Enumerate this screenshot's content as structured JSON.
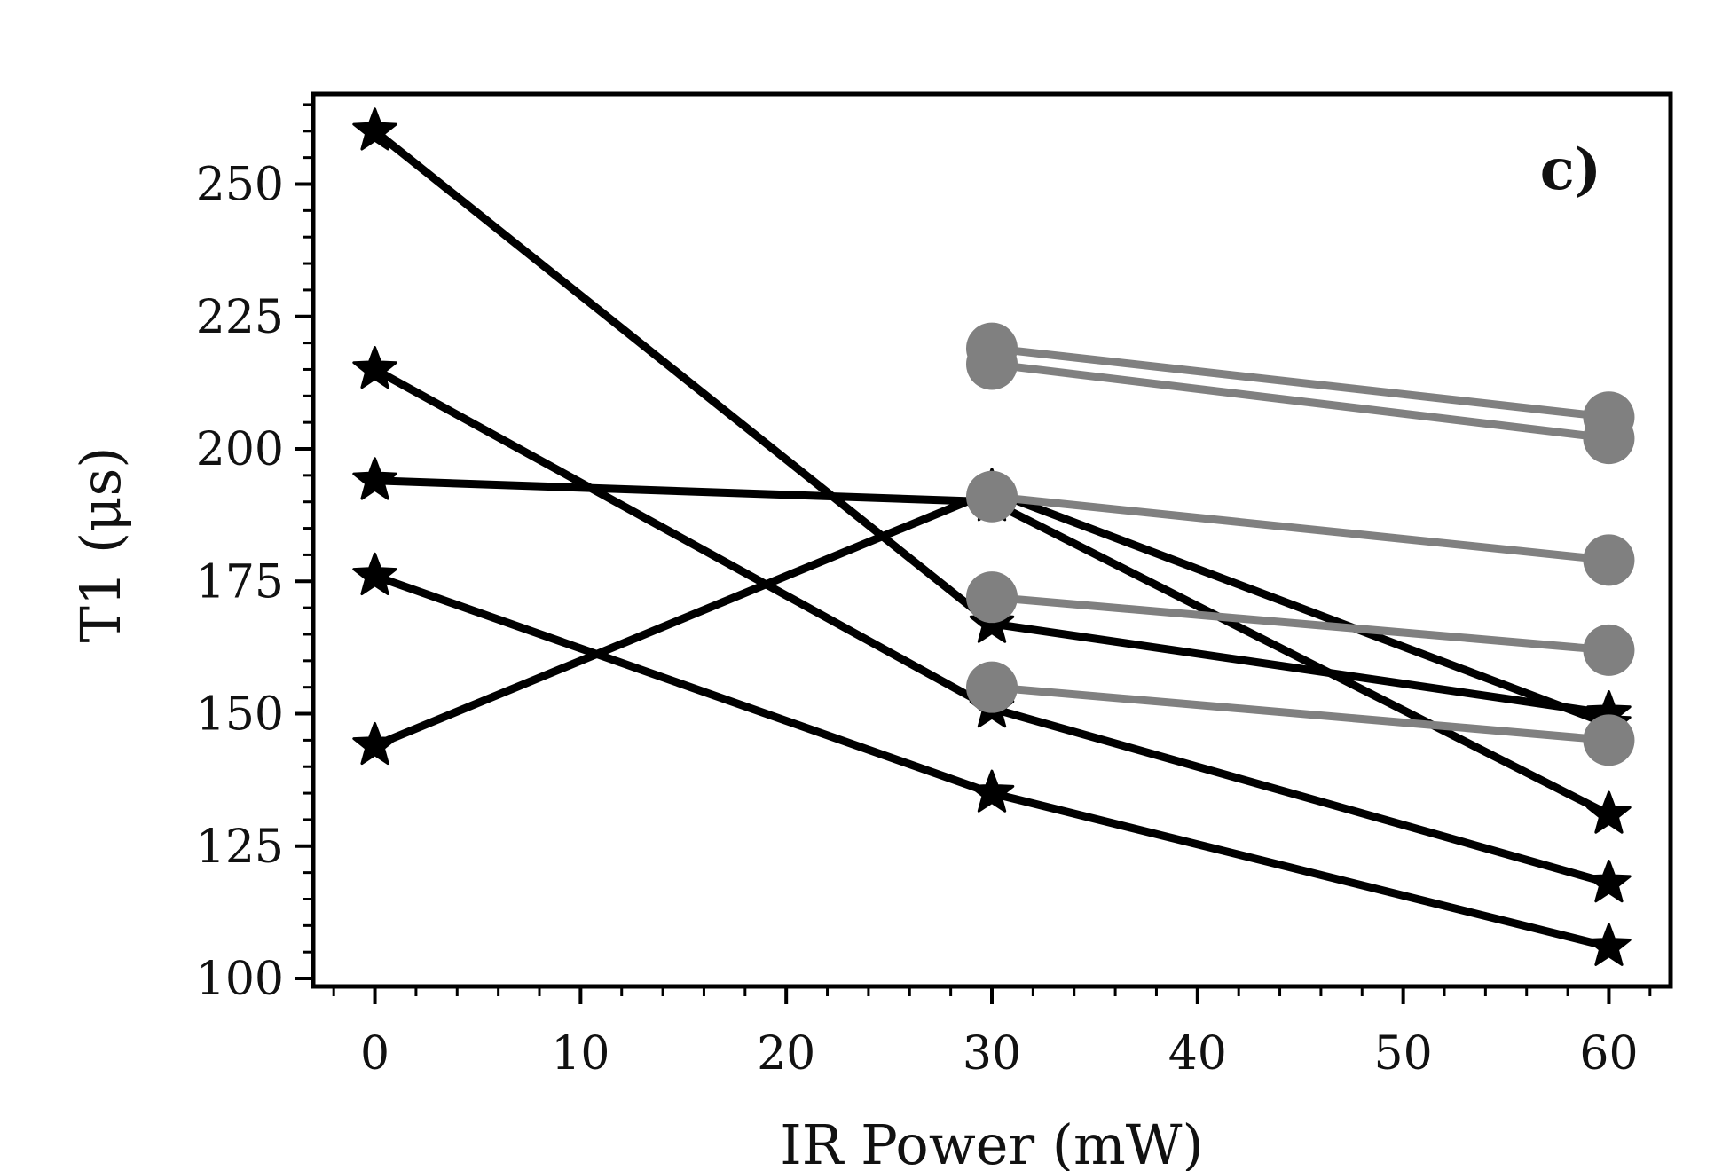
{
  "chart_data": {
    "type": "line",
    "title": "",
    "panel_label": "c)",
    "xlabel": "IR Power (mW)",
    "ylabel": "T1 (μs)",
    "xlim": [
      -3,
      63
    ],
    "ylim": [
      98.5,
      267
    ],
    "xticks": [
      0,
      10,
      20,
      30,
      40,
      50,
      60
    ],
    "xtick_labels": [
      "0",
      "10",
      "20",
      "30",
      "40",
      "50",
      "60"
    ],
    "yticks": [
      100,
      125,
      150,
      175,
      200,
      225,
      250
    ],
    "ytick_labels": [
      "100",
      "125",
      "150",
      "175",
      "200",
      "225",
      "250"
    ],
    "grid": false,
    "colors": {
      "black_series": "#000000",
      "gray_series": "#808080",
      "axis": "#000000"
    },
    "series": [
      {
        "name": "star-1",
        "color": "#000000",
        "marker": "star",
        "x": [
          0,
          30,
          60
        ],
        "y": [
          260,
          167,
          150
        ]
      },
      {
        "name": "star-2",
        "color": "#000000",
        "marker": "star",
        "x": [
          0,
          30,
          60
        ],
        "y": [
          215,
          151,
          118
        ]
      },
      {
        "name": "star-3",
        "color": "#000000",
        "marker": "star",
        "x": [
          0,
          30,
          60
        ],
        "y": [
          194,
          190,
          131
        ]
      },
      {
        "name": "star-4",
        "color": "#000000",
        "marker": "star",
        "x": [
          0,
          30,
          60
        ],
        "y": [
          176,
          135,
          106
        ]
      },
      {
        "name": "star-5",
        "color": "#000000",
        "marker": "star",
        "x": [
          0,
          30,
          60
        ],
        "y": [
          144,
          192,
          148
        ]
      },
      {
        "name": "circle-1",
        "color": "#808080",
        "marker": "circle",
        "x": [
          30,
          60
        ],
        "y": [
          219,
          206
        ]
      },
      {
        "name": "circle-2",
        "color": "#808080",
        "marker": "circle",
        "x": [
          30,
          60
        ],
        "y": [
          216,
          202
        ]
      },
      {
        "name": "circle-3",
        "color": "#808080",
        "marker": "circle",
        "x": [
          30,
          60
        ],
        "y": [
          191,
          179
        ]
      },
      {
        "name": "circle-4",
        "color": "#808080",
        "marker": "circle",
        "x": [
          30,
          60
        ],
        "y": [
          172,
          162
        ]
      },
      {
        "name": "circle-5",
        "color": "#808080",
        "marker": "circle",
        "x": [
          30,
          60
        ],
        "y": [
          155,
          145
        ]
      }
    ]
  }
}
